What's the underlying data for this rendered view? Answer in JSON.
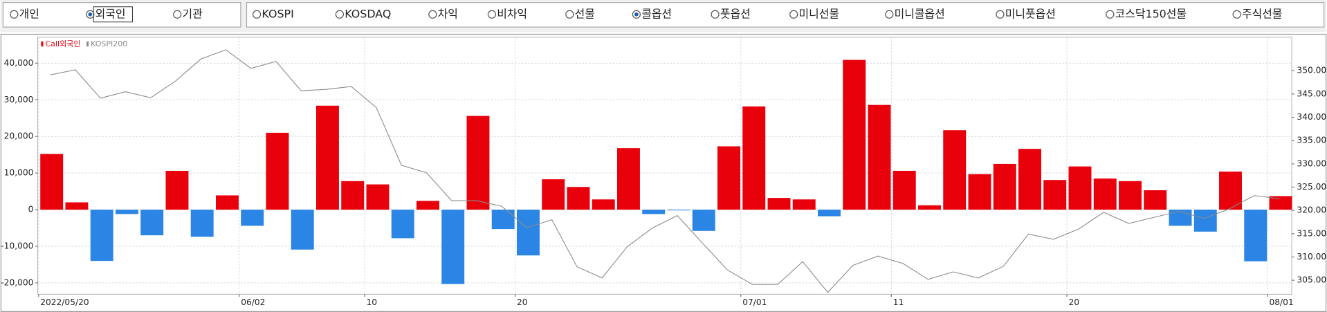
{
  "filters": [
    {
      "options": [
        "개인",
        "외국인",
        "기관"
      ],
      "selected": 1
    },
    {
      "options": [
        "KOSPI",
        "KOSDAQ",
        "차익",
        "비차익",
        "선물",
        "콜옵션",
        "풋옵션",
        "미니선물",
        "미니콜옵션",
        "미니풋옵션",
        "코스닥150선물",
        "주식선물"
      ],
      "selected": 5
    }
  ],
  "chart_data": {
    "type": "bar",
    "categories": [
      "2022/05/20",
      null,
      null,
      null,
      null,
      null,
      null,
      null,
      "06/02",
      null,
      null,
      null,
      null,
      "10",
      null,
      null,
      null,
      null,
      null,
      "20",
      null,
      null,
      null,
      null,
      null,
      null,
      null,
      null,
      "07/01",
      null,
      null,
      null,
      null,
      null,
      "11",
      null,
      null,
      null,
      null,
      null,
      null,
      "20",
      null,
      null,
      null,
      null,
      null,
      null,
      null,
      "08/01"
    ],
    "series": [
      {
        "name": "Call외국인",
        "color": "#e8000b",
        "negative_color": "#2b85e4",
        "values": [
          15200,
          2000,
          -14000,
          -1200,
          -7000,
          10600,
          -7400,
          3900,
          -4400,
          21000,
          -10900,
          28400,
          7800,
          6900,
          -7800,
          2400,
          -20300,
          25600,
          -5300,
          -12500,
          8300,
          6200,
          2800,
          16800,
          -1200,
          -200,
          -5800,
          17300,
          28200,
          3200,
          2800,
          -1800,
          40900,
          28600,
          10600,
          1200,
          21700,
          9700,
          12500,
          16600,
          8100,
          11800,
          8500,
          7800,
          5300,
          -4400,
          -6000,
          10400,
          -14100,
          3700
        ]
      },
      {
        "name": "KOSPI200",
        "color": "#8c8c8c",
        "type": "line",
        "axis": "y2",
        "values": [
          349.1,
          350.2,
          344.1,
          345.5,
          344.2,
          347.8,
          352.5,
          354.5,
          350.5,
          352.0,
          345.7,
          346.0,
          346.6,
          342.1,
          329.7,
          328.1,
          322.1,
          322.1,
          320.9,
          316.3,
          318.0,
          307.9,
          305.5,
          312.2,
          316.2,
          318.9,
          313.0,
          307.2,
          304.1,
          304.1,
          309.0,
          302.4,
          308.2,
          310.2,
          308.6,
          305.2,
          306.8,
          305.5,
          308.0,
          314.9,
          313.8,
          316.0,
          319.6,
          317.2,
          318.5,
          319.8,
          318.3,
          320.3,
          323.2,
          322.5
        ]
      }
    ],
    "ylim": [
      -23100,
      47100
    ],
    "yticks": [
      {
        "value": -20000,
        "label": "-20,000"
      },
      {
        "value": -10000,
        "label": "-10,000"
      },
      0,
      {
        "value": 10000,
        "label": "10,000"
      },
      {
        "value": 20000,
        "label": "20,000"
      },
      {
        "value": 30000,
        "label": "30,000"
      },
      {
        "value": 40000,
        "label": "40,000"
      }
    ],
    "y2lim": [
      302,
      357.2
    ],
    "y2ticks": [
      {
        "value": 305,
        "label": "305.00"
      },
      {
        "value": 310,
        "label": "310.00"
      },
      {
        "value": 315,
        "label": "315.00"
      },
      {
        "value": 320,
        "label": "320.00"
      },
      {
        "value": 325,
        "label": "325.00"
      },
      {
        "value": 330,
        "label": "330.00"
      },
      {
        "value": 335,
        "label": "335.00"
      },
      {
        "value": 340,
        "label": "340.00"
      },
      {
        "value": 345,
        "label": "345.00"
      },
      {
        "value": 350,
        "label": "350.00"
      }
    ],
    "grid": true
  }
}
